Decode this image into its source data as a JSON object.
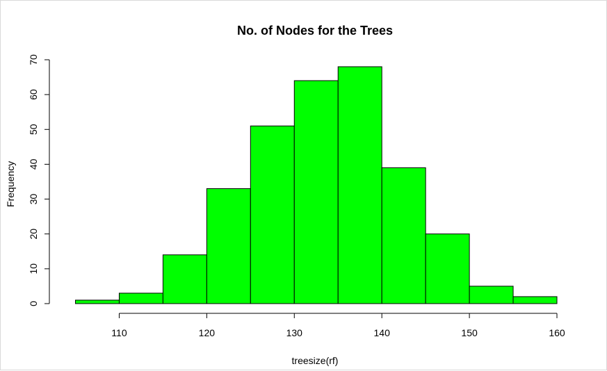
{
  "chart_data": {
    "type": "bar",
    "title": "No. of Nodes for the Trees",
    "xlabel": "treesize(rf)",
    "ylabel": "Frequency",
    "bins": [
      {
        "start": 105,
        "end": 110,
        "value": 1
      },
      {
        "start": 110,
        "end": 115,
        "value": 3
      },
      {
        "start": 115,
        "end": 120,
        "value": 14
      },
      {
        "start": 120,
        "end": 125,
        "value": 33
      },
      {
        "start": 125,
        "end": 130,
        "value": 51
      },
      {
        "start": 130,
        "end": 135,
        "value": 64
      },
      {
        "start": 135,
        "end": 140,
        "value": 68
      },
      {
        "start": 140,
        "end": 145,
        "value": 39
      },
      {
        "start": 145,
        "end": 150,
        "value": 20
      },
      {
        "start": 150,
        "end": 155,
        "value": 5
      },
      {
        "start": 155,
        "end": 160,
        "value": 2
      }
    ],
    "xticks": [
      "110",
      "120",
      "130",
      "140",
      "150",
      "160"
    ],
    "yticks": [
      "0",
      "10",
      "20",
      "30",
      "40",
      "50",
      "60",
      "70"
    ],
    "xlim": [
      105,
      160
    ],
    "ylim": [
      0,
      70
    ],
    "bar_color": "#00ff00",
    "bar_edge_color": "#000000",
    "grid": false,
    "legend": "none"
  }
}
